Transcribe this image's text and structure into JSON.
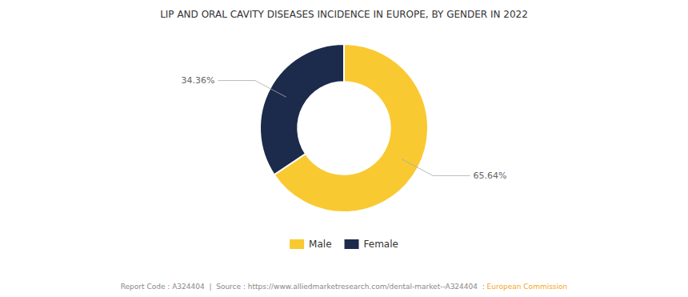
{
  "chart_data": {
    "type": "donut",
    "title": "LIP AND ORAL CAVITY DISEASES INCIDENCE IN EUROPE, BY GENDER IN 2022",
    "categories": [
      "Male",
      "Female"
    ],
    "values": [
      65.64,
      34.36
    ],
    "value_labels": [
      "65.64%",
      "34.36%"
    ],
    "data_labels": true,
    "colors": [
      "#F9C932",
      "#1C2B4B"
    ],
    "legend": "bottom",
    "annotations": [
      "Report Code : A324404  |  Source : https://www.alliedmarketresearch.com/dental-market--A324404  : ",
      "European Commission"
    ]
  }
}
